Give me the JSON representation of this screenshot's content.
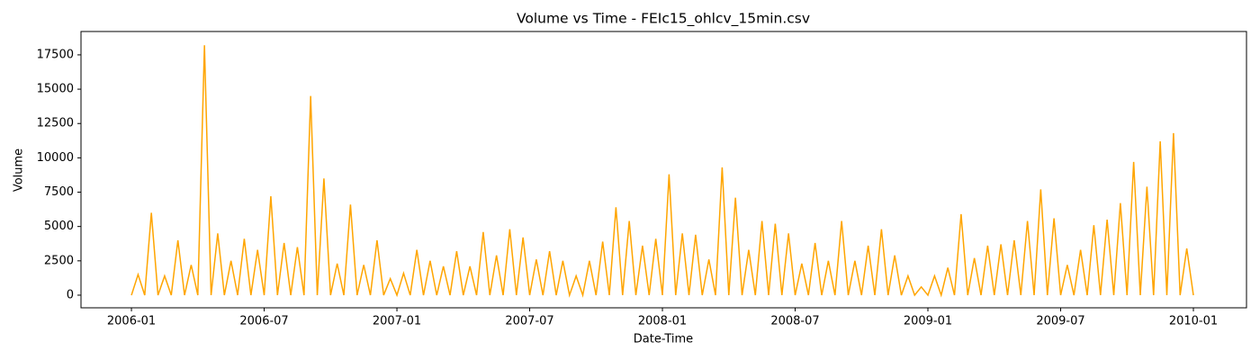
{
  "chart_data": {
    "type": "line",
    "title": "Volume vs Time - FEIc15_ohlcv_15min.csv",
    "x_label": "Date-Time",
    "y_label": "Volume",
    "color": "#ffa500",
    "x": [
      2006,
      2006.025,
      2006.05,
      2006.075,
      2006.1,
      2006.125,
      2006.15,
      2006.175,
      2006.2,
      2006.225,
      2006.25,
      2006.275,
      2006.3,
      2006.325,
      2006.35,
      2006.375,
      2006.4,
      2006.425,
      2006.45,
      2006.475,
      2006.5,
      2006.525,
      2006.55,
      2006.575,
      2006.6,
      2006.625,
      2006.65,
      2006.675,
      2006.7,
      2006.725,
      2006.75,
      2006.775,
      2006.8,
      2006.825,
      2006.85,
      2006.875,
      2006.9,
      2006.925,
      2006.95,
      2006.975,
      2007,
      2007.025,
      2007.05,
      2007.075,
      2007.1,
      2007.125,
      2007.15,
      2007.175,
      2007.2,
      2007.225,
      2007.25,
      2007.275,
      2007.3,
      2007.325,
      2007.35,
      2007.375,
      2007.4,
      2007.425,
      2007.45,
      2007.475,
      2007.5,
      2007.525,
      2007.55,
      2007.575,
      2007.6,
      2007.625,
      2007.65,
      2007.675,
      2007.7,
      2007.725,
      2007.75,
      2007.775,
      2007.8,
      2007.825,
      2007.85,
      2007.875,
      2007.9,
      2007.925,
      2007.95,
      2007.975,
      2008,
      2008.025,
      2008.05,
      2008.075,
      2008.1,
      2008.125,
      2008.15,
      2008.175,
      2008.2,
      2008.225,
      2008.25,
      2008.275,
      2008.3,
      2008.325,
      2008.35,
      2008.375,
      2008.4,
      2008.425,
      2008.45,
      2008.475,
      2008.5,
      2008.525,
      2008.55,
      2008.575,
      2008.6,
      2008.625,
      2008.65,
      2008.675,
      2008.7,
      2008.725,
      2008.75,
      2008.775,
      2008.8,
      2008.825,
      2008.85,
      2008.875,
      2008.9,
      2008.925,
      2008.95,
      2008.975,
      2009,
      2009.025,
      2009.05,
      2009.075,
      2009.1,
      2009.125,
      2009.15,
      2009.175,
      2009.2,
      2009.225,
      2009.25,
      2009.275,
      2009.3,
      2009.325,
      2009.35,
      2009.375,
      2009.4,
      2009.425,
      2009.45,
      2009.475,
      2009.5,
      2009.525,
      2009.55,
      2009.575,
      2009.6,
      2009.625,
      2009.65,
      2009.675,
      2009.7,
      2009.725,
      2009.75,
      2009.775,
      2009.8,
      2009.825,
      2009.85,
      2009.875,
      2009.9,
      2009.925,
      2009.95,
      2009.975,
      2010
    ],
    "values": [
      0,
      1500,
      0,
      6000,
      0,
      1400,
      0,
      4000,
      0,
      2200,
      0,
      18200,
      0,
      4500,
      0,
      2500,
      0,
      4100,
      0,
      3300,
      0,
      7200,
      0,
      3800,
      0,
      3500,
      0,
      14500,
      0,
      8500,
      0,
      2300,
      0,
      6600,
      0,
      2200,
      0,
      4000,
      0,
      1200,
      0,
      1600,
      0,
      3300,
      0,
      2500,
      0,
      2100,
      0,
      3200,
      0,
      2100,
      0,
      4600,
      0,
      2900,
      0,
      4800,
      0,
      4200,
      0,
      2600,
      0,
      3200,
      0,
      2500,
      0,
      1400,
      0,
      2500,
      0,
      3900,
      0,
      6400,
      0,
      5400,
      0,
      3600,
      0,
      4100,
      0,
      8800,
      0,
      4500,
      0,
      4400,
      0,
      2600,
      0,
      9300,
      0,
      7100,
      0,
      3300,
      0,
      5400,
      0,
      5200,
      0,
      4500,
      0,
      2300,
      0,
      3800,
      0,
      2500,
      0,
      5400,
      0,
      2500,
      0,
      3600,
      0,
      4800,
      0,
      2900,
      0,
      1400,
      0,
      600,
      0,
      1400,
      0,
      2000,
      0,
      5900,
      0,
      2700,
      0,
      3600,
      0,
      3700,
      0,
      4000,
      0,
      5400,
      0,
      7700,
      0,
      5600,
      0,
      2200,
      0,
      3300,
      0,
      5100,
      0,
      5500,
      0,
      6700,
      0,
      9700,
      0,
      7900,
      0,
      11200,
      0,
      11800,
      0,
      3400,
      0
    ],
    "xlim": [
      2005.81,
      2010.2
    ],
    "xticks": [
      {
        "value": 2006,
        "label": "2006-01"
      },
      {
        "value": 2006.5,
        "label": "2006-07"
      },
      {
        "value": 2007,
        "label": "2007-01"
      },
      {
        "value": 2007.5,
        "label": "2007-07"
      },
      {
        "value": 2008,
        "label": "2008-01"
      },
      {
        "value": 2008.5,
        "label": "2008-07"
      },
      {
        "value": 2009,
        "label": "2009-01"
      },
      {
        "value": 2009.5,
        "label": "2009-07"
      },
      {
        "value": 2010,
        "label": "2010-01"
      }
    ],
    "ylim": [
      -920,
      19200
    ],
    "yticks": [
      0,
      2500,
      5000,
      7500,
      10000,
      12500,
      15000,
      17500
    ],
    "grid": false
  }
}
